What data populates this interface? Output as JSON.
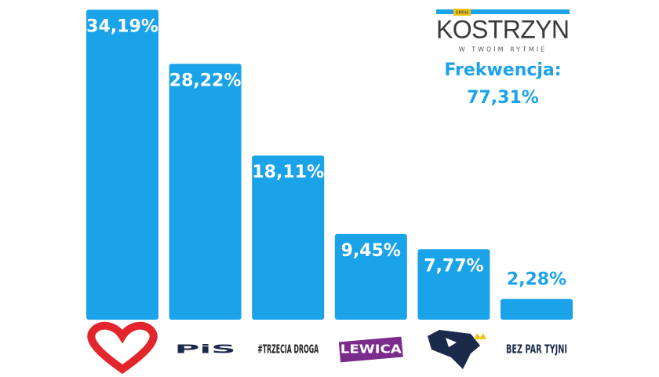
{
  "chart_data": {
    "type": "bar",
    "categories": [
      null,
      "PiS",
      "#TRZECIA DROGA",
      "LEWICA",
      null,
      "BEZ PAR TYJNI"
    ],
    "values": [
      34.19,
      28.22,
      18.11,
      9.45,
      7.77,
      2.28
    ],
    "value_labels": [
      "34,19%",
      "28,22%",
      "18,11%",
      "9,45%",
      "7,77%",
      "2,28%"
    ],
    "color": "#1ba3e9",
    "ylim": [
      0,
      35
    ],
    "logo": {
      "small": "GMINA",
      "name": "KOSTRZYN",
      "tagline": "W TWOIM RYTMIE"
    },
    "annotation": {
      "label": "Frekwencja:",
      "value": "77,31%"
    }
  }
}
